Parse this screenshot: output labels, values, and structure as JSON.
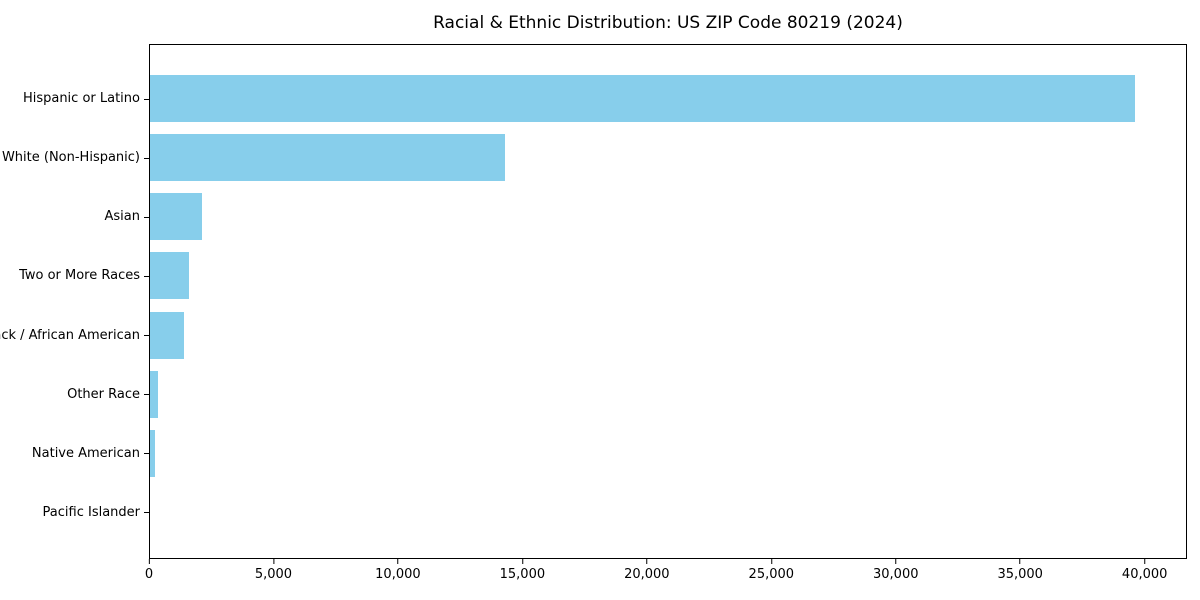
{
  "title": "Racial & Ethnic Distribution: US ZIP Code 80219 (2024)",
  "chart_data": {
    "type": "bar",
    "orientation": "horizontal",
    "title": "Racial & Ethnic Distribution: US ZIP Code 80219 (2024)",
    "xlabel": "",
    "ylabel": "",
    "categories": [
      "Hispanic or Latino",
      "White (Non-Hispanic)",
      "Asian",
      "Two or More Races",
      "Black / African American",
      "Other Race",
      "Native American",
      "Pacific Islander"
    ],
    "values": [
      39650,
      14300,
      2100,
      1560,
      1380,
      320,
      200,
      0
    ],
    "xlim": [
      0,
      41700
    ],
    "xticks": [
      0,
      5000,
      10000,
      15000,
      20000,
      25000,
      30000,
      35000,
      40000
    ],
    "xtick_labels": [
      "0",
      "5,000",
      "10,000",
      "15,000",
      "20,000",
      "25,000",
      "30,000",
      "35,000",
      "40,000"
    ],
    "bar_color": "#87CEEB",
    "grid": false,
    "legend": null
  }
}
